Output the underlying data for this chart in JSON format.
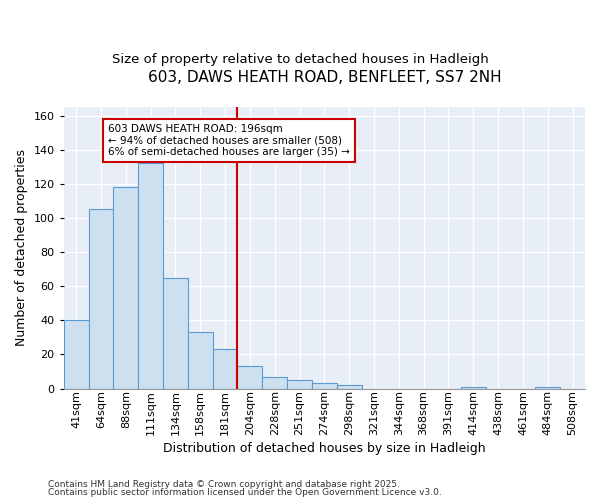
{
  "title": "603, DAWS HEATH ROAD, BENFLEET, SS7 2NH",
  "subtitle": "Size of property relative to detached houses in Hadleigh",
  "xlabel": "Distribution of detached houses by size in Hadleigh",
  "ylabel": "Number of detached properties",
  "categories": [
    "41sqm",
    "64sqm",
    "88sqm",
    "111sqm",
    "134sqm",
    "158sqm",
    "181sqm",
    "204sqm",
    "228sqm",
    "251sqm",
    "274sqm",
    "298sqm",
    "321sqm",
    "344sqm",
    "368sqm",
    "391sqm",
    "414sqm",
    "438sqm",
    "461sqm",
    "484sqm",
    "508sqm"
  ],
  "values": [
    40,
    105,
    118,
    132,
    65,
    33,
    23,
    13,
    7,
    5,
    3,
    2,
    0,
    0,
    0,
    0,
    1,
    0,
    0,
    1,
    0
  ],
  "bar_color": "#cce0f0",
  "bar_edge_color": "#5b9bd5",
  "vline_pos": 6.5,
  "annotation_text": "603 DAWS HEATH ROAD: 196sqm\n← 94% of detached houses are smaller (508)\n6% of semi-detached houses are larger (35) →",
  "annotation_box_facecolor": "#ffffff",
  "annotation_box_edgecolor": "#cc0000",
  "vline_color": "#cc0000",
  "ylim": [
    0,
    165
  ],
  "yticks": [
    0,
    20,
    40,
    60,
    80,
    100,
    120,
    140,
    160
  ],
  "plot_bg_color": "#e8eef5",
  "fig_bg_color": "#ffffff",
  "grid_color": "#ffffff",
  "title_fontsize": 11,
  "subtitle_fontsize": 9.5,
  "axis_label_fontsize": 9,
  "tick_fontsize": 8,
  "footnote1": "Contains HM Land Registry data © Crown copyright and database right 2025.",
  "footnote2": "Contains public sector information licensed under the Open Government Licence v3.0."
}
